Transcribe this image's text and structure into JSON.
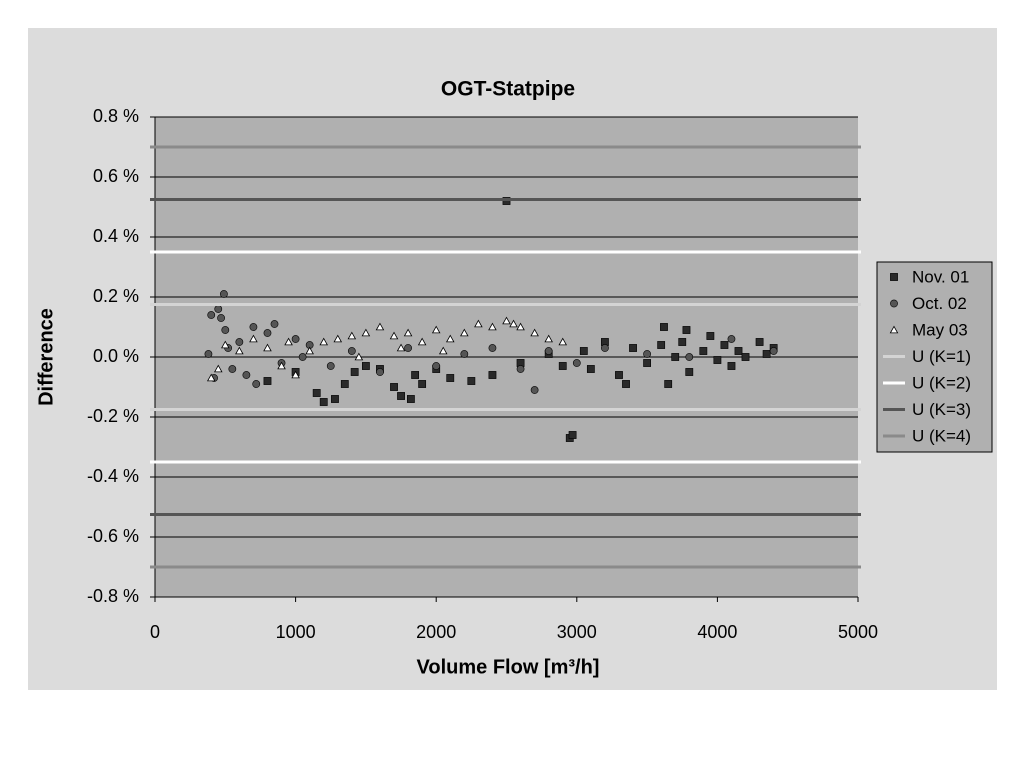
{
  "chart_data": {
    "type": "scatter",
    "title": "OGT-Statpipe",
    "x_label": "Volume Flow [m³/h]",
    "y_label": "Difference",
    "xlim": [
      0,
      5000
    ],
    "xticks": [
      0,
      1000,
      2000,
      3000,
      4000,
      5000
    ],
    "ylim": [
      -0.8,
      0.8
    ],
    "yticks": [
      {
        "value": -0.8,
        "label": "-0.8 %"
      },
      {
        "value": -0.6,
        "label": "-0.6 %"
      },
      {
        "value": -0.4,
        "label": "-0.4 %"
      },
      {
        "value": -0.2,
        "label": "-0.2 %"
      },
      {
        "value": 0,
        "label": "0.0 %"
      },
      {
        "value": 0.2,
        "label": "0.2 %"
      },
      {
        "value": 0.4,
        "label": "0.4 %"
      },
      {
        "value": 0.6,
        "label": "0.6 %"
      },
      {
        "value": 0.8,
        "label": "0.8 %"
      }
    ],
    "grid": true,
    "legend": "right",
    "series": [
      {
        "name": "Nov. 01",
        "marker": "square",
        "color": "#2a2a2a",
        "x": [
          1150,
          1200,
          1280,
          1350,
          1420,
          1500,
          1700,
          1750,
          1820,
          1850,
          1900,
          2000,
          2100,
          2250,
          2400,
          2500,
          2600,
          2800,
          2900,
          2950,
          2970,
          3050,
          3100,
          3200,
          3300,
          3350,
          3400,
          3500,
          3600,
          3620,
          3650,
          3700,
          3750,
          3780,
          3800,
          3900,
          3950,
          4000,
          4050,
          4100,
          4150,
          4200,
          4300,
          4350,
          4400,
          800,
          1000,
          1600
        ],
        "values": [
          -0.12,
          -0.15,
          -0.14,
          -0.09,
          -0.05,
          -0.03,
          -0.1,
          -0.13,
          -0.14,
          -0.06,
          -0.09,
          -0.04,
          -0.07,
          -0.08,
          -0.06,
          0.52,
          -0.02,
          0.01,
          -0.03,
          -0.27,
          -0.26,
          0.02,
          -0.04,
          0.05,
          -0.06,
          -0.09,
          0.03,
          -0.02,
          0.04,
          0.1,
          -0.09,
          0.0,
          0.05,
          0.09,
          -0.05,
          0.02,
          0.07,
          -0.01,
          0.04,
          -0.03,
          0.02,
          0.0,
          0.05,
          0.01,
          0.03,
          -0.08,
          -0.05,
          -0.04
        ]
      },
      {
        "name": "Oct. 02",
        "marker": "circle",
        "color": "#555555",
        "x": [
          380,
          400,
          420,
          450,
          470,
          490,
          500,
          520,
          550,
          600,
          650,
          700,
          720,
          800,
          850,
          900,
          1000,
          1050,
          1100,
          1250,
          1400,
          1600,
          1800,
          2000,
          2200,
          2400,
          2600,
          2700,
          2800,
          3000,
          3200,
          3500,
          3800,
          4100,
          4400
        ],
        "values": [
          0.01,
          0.14,
          -0.07,
          0.16,
          0.13,
          0.21,
          0.09,
          0.03,
          -0.04,
          0.05,
          -0.06,
          0.1,
          -0.09,
          0.08,
          0.11,
          -0.02,
          0.06,
          0.0,
          0.04,
          -0.03,
          0.02,
          -0.05,
          0.03,
          -0.03,
          0.01,
          0.03,
          -0.04,
          -0.11,
          0.02,
          -0.02,
          0.03,
          0.01,
          0.0,
          0.06,
          0.02
        ]
      },
      {
        "name": "May 03",
        "marker": "triangle",
        "color": "#ffffff",
        "x": [
          400,
          450,
          500,
          600,
          700,
          800,
          900,
          950,
          1000,
          1100,
          1200,
          1300,
          1400,
          1500,
          1600,
          1700,
          1800,
          1900,
          2000,
          2100,
          2200,
          2300,
          2400,
          2500,
          2550,
          2600,
          2700,
          2800,
          2900,
          1450,
          1750,
          2050
        ],
        "values": [
          -0.07,
          -0.04,
          0.04,
          0.02,
          0.06,
          0.03,
          -0.03,
          0.05,
          -0.06,
          0.02,
          0.05,
          0.06,
          0.07,
          0.08,
          0.1,
          0.07,
          0.08,
          0.05,
          0.09,
          0.06,
          0.08,
          0.11,
          0.1,
          0.12,
          0.11,
          0.1,
          0.08,
          0.06,
          0.05,
          0.0,
          0.03,
          0.02
        ]
      },
      {
        "name": "U (K=1)",
        "marker": "hline",
        "color": "#d4d4d4",
        "values": [
          0.175,
          -0.175
        ]
      },
      {
        "name": "U (K=2)",
        "marker": "hline",
        "color": "#ffffff",
        "values": [
          0.35,
          -0.35
        ]
      },
      {
        "name": "U (K=3)",
        "marker": "hline",
        "color": "#555555",
        "values": [
          0.525,
          -0.525
        ]
      },
      {
        "name": "U (K=4)",
        "marker": "hline",
        "color": "#8a8a8a",
        "values": [
          0.7,
          -0.7
        ]
      }
    ]
  }
}
